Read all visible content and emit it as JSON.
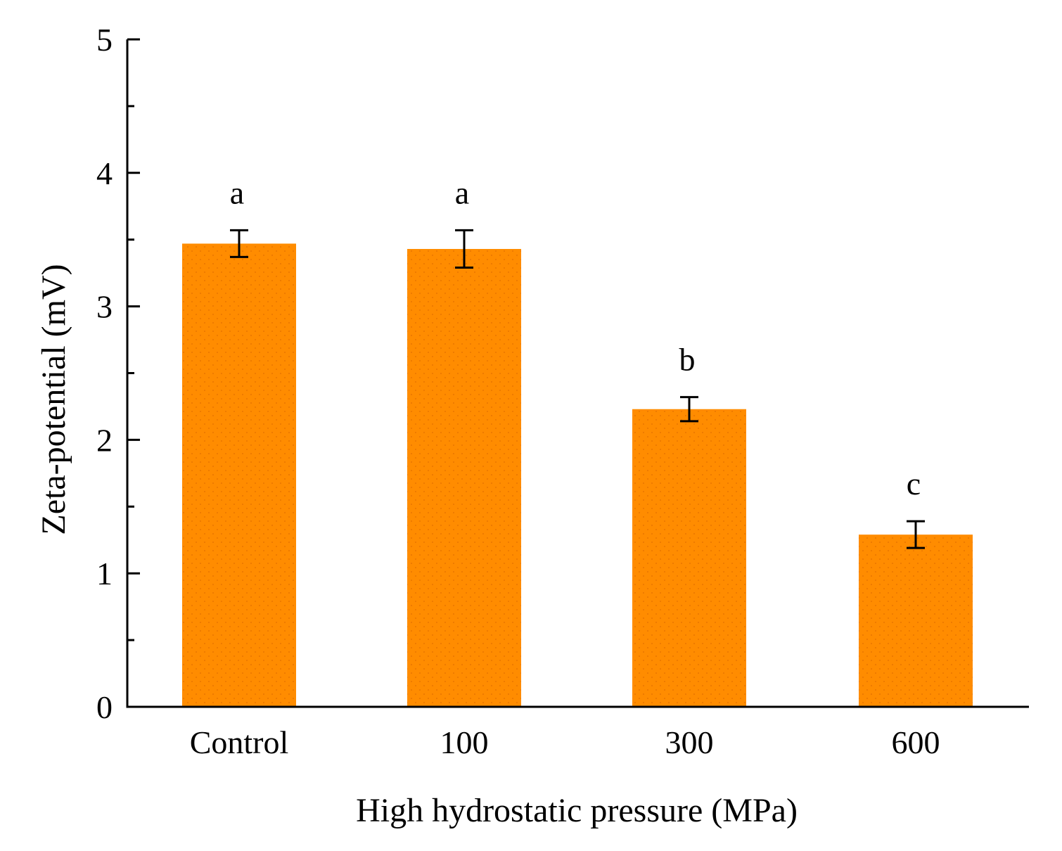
{
  "chart_data": {
    "type": "bar",
    "title": "",
    "xlabel": "High hydrostatic pressure (MPa)",
    "ylabel": "Zeta-potential (mV)",
    "categories": [
      "Control",
      "100",
      "300",
      "600"
    ],
    "values": [
      3.47,
      3.43,
      2.23,
      1.29
    ],
    "errors": [
      0.1,
      0.14,
      0.09,
      0.1
    ],
    "significance": [
      "a",
      "a",
      "b",
      "c"
    ],
    "ylim": [
      0,
      5
    ],
    "yticks": [
      "0",
      "1",
      "2",
      "3",
      "4",
      "5"
    ],
    "grid": false,
    "legend": "none",
    "colors": {
      "bar": "#ff8c00",
      "bar_dots": "#e36f00",
      "axis": "#000000"
    }
  }
}
